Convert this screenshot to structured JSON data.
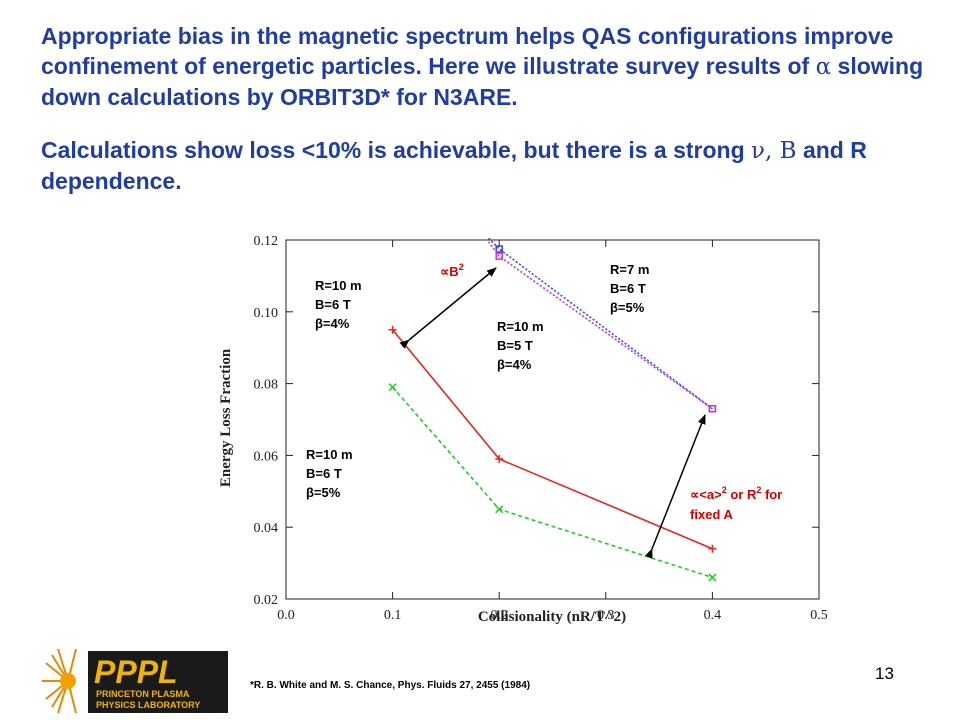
{
  "headline": {
    "p1_a": "Appropriate bias in the magnetic spectrum helps QAS configurations improve confinement of energetic particles. Here we illustrate survey results of ",
    "p1_sym": "α",
    "p1_b": " slowing down calculations by ORBIT3D* for N3ARE.",
    "p2_a": "Calculations show loss <10% is achievable, but there is a strong ",
    "p2_sym": "ν, B",
    "p2_b": " and R dependence."
  },
  "chart_data": {
    "type": "line",
    "xlabel": "Collisionality (nR/T^2)",
    "ylabel": "Energy Loss Fraction",
    "xlim": [
      0.0,
      0.5
    ],
    "ylim": [
      0.02,
      0.12
    ],
    "x_ticks": [
      "0.0",
      "0.1",
      "0.2",
      "0.3",
      "0.4",
      "0.5"
    ],
    "y_ticks": [
      "0.02",
      "0.04",
      "0.06",
      "0.08",
      "0.10",
      "0.12"
    ],
    "grid": false,
    "series": [
      {
        "label": "R=10 m B=6 T β=4%",
        "color": "#e8261d",
        "marker": "+",
        "x": [
          0.1,
          0.2,
          0.4
        ],
        "y": [
          0.095,
          0.059,
          0.034
        ]
      },
      {
        "label": "R=10 m B=6 T β=5%",
        "color": "#22cc22",
        "marker": "x",
        "x": [
          0.1,
          0.2,
          0.4
        ],
        "y": [
          0.079,
          0.045,
          0.026
        ]
      },
      {
        "label": "R=10 m B=5 T β=4%",
        "color": "#3344ff",
        "marker": "square",
        "x": [
          0.19,
          0.2,
          0.4
        ],
        "y": [
          0.1205,
          0.1175,
          0.073
        ]
      },
      {
        "label": "R=7 m B=6 T β=5%",
        "color": "#cc33cc",
        "marker": "square",
        "x": [
          0.19,
          0.2,
          0.4
        ],
        "y": [
          0.1195,
          0.1155,
          0.073
        ]
      }
    ],
    "annotations": {
      "b2": "∝B",
      "b2_sup": "2",
      "series_red": [
        "R=10 m",
        "B=6 T",
        "β=4%"
      ],
      "series_green": [
        "R=10 m",
        "B=6 T",
        "β=5%"
      ],
      "series_blue": [
        "R=10 m",
        "B=5 T",
        "β=4%"
      ],
      "series_purple": [
        "R=7 m",
        "B=6 T",
        "β=5%"
      ],
      "radius_prefix": "∝<a>",
      "radius_sup1": "2",
      "radius_mid": " or R",
      "radius_sup2": "2",
      "radius_suffix": " for",
      "radius_line2": "fixed A"
    }
  },
  "footnote": "*R. B. White and M. S. Chance, Phys. Fluids 27, 2455 (1984)",
  "page_number": "13",
  "logo": {
    "mark": "PPPL",
    "line1": "PRINCETON PLASMA",
    "line2": "PHYSICS LABORATORY"
  }
}
